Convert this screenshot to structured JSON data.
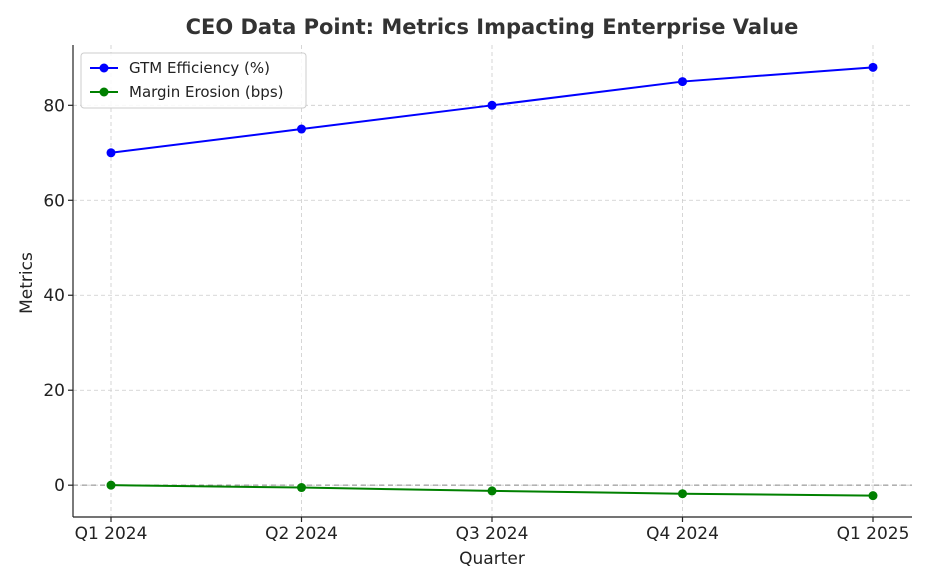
{
  "chart_data": {
    "type": "line",
    "title": "CEO Data Point: Metrics Impacting Enterprise Value",
    "xlabel": "Quarter",
    "ylabel": "Metrics",
    "categories": [
      "Q1 2024",
      "Q2 2024",
      "Q3 2024",
      "Q4 2024",
      "Q1 2025"
    ],
    "ylim": [
      -6.7,
      92.7
    ],
    "yticks": [
      0,
      20,
      40,
      60,
      80
    ],
    "grid": true,
    "reference_line_y": 0,
    "legend_position": "top-left",
    "series": [
      {
        "name": "GTM Efficiency (%)",
        "values": [
          70,
          75,
          80,
          85,
          88
        ],
        "color": "#0000ff"
      },
      {
        "name": "Margin Erosion (bps)",
        "values": [
          0,
          -0.5,
          -1.2,
          -1.8,
          -2.2
        ],
        "color": "#008000"
      }
    ]
  }
}
